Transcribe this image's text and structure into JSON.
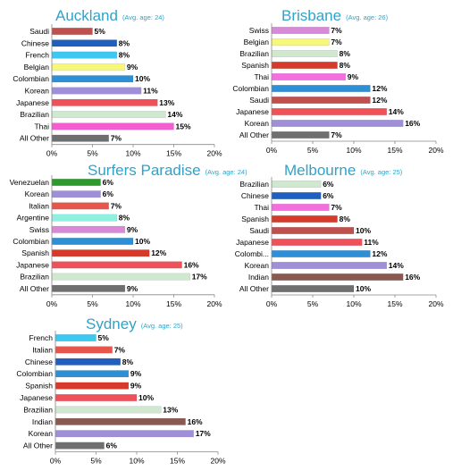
{
  "chart_data": [
    {
      "type": "bar",
      "orientation": "horizontal",
      "title": "Auckland",
      "subtitle": "(Avg. age: 24)",
      "categories": [
        "Saudi",
        "Chinese",
        "French",
        "Belgian",
        "Colombian",
        "Korean",
        "Japanese",
        "Brazilian",
        "Thai",
        "All Other"
      ],
      "values": [
        5,
        8,
        8,
        9,
        10,
        11,
        13,
        14,
        15,
        7
      ],
      "value_labels": [
        "5%",
        "8%",
        "8%",
        "9%",
        "10%",
        "11%",
        "13%",
        "14%",
        "15%",
        "7%"
      ],
      "colors": [
        "#c0504d",
        "#1f5fbf",
        "#3ec8f0",
        "#f7f77a",
        "#2f8fd6",
        "#9f8fd9",
        "#f0505a",
        "#cfe8cf",
        "#f45fd0",
        "#6f6f6f"
      ],
      "xlim": [
        0,
        20
      ],
      "xticks": [
        "0%",
        "5%",
        "10%",
        "15%",
        "20%"
      ]
    },
    {
      "type": "bar",
      "orientation": "horizontal",
      "title": "Brisbane",
      "subtitle": "(Avg. age: 26)",
      "categories": [
        "Swiss",
        "Belgian",
        "Brazilian",
        "Spanish",
        "Thai",
        "Colombian",
        "Saudi",
        "Japanese",
        "Korean",
        "All Other"
      ],
      "values": [
        7,
        7,
        8,
        8,
        9,
        12,
        12,
        14,
        16,
        7
      ],
      "value_labels": [
        "7%",
        "7%",
        "8%",
        "8%",
        "9%",
        "12%",
        "12%",
        "14%",
        "16%",
        "7%"
      ],
      "colors": [
        "#d88ad8",
        "#f7f77a",
        "#cfe8cf",
        "#d63a2a",
        "#f56ee0",
        "#2f8fd6",
        "#c0504d",
        "#f0505a",
        "#9f8fd9",
        "#6f6f6f"
      ],
      "xlim": [
        0,
        20
      ],
      "xticks": [
        "0%",
        "5%",
        "10%",
        "15%",
        "20%"
      ]
    },
    {
      "type": "bar",
      "orientation": "horizontal",
      "title": "Surfers Paradise",
      "subtitle": "(Avg. age: 24)",
      "categories": [
        "Venezuelan",
        "Korean",
        "Italian",
        "Argentine",
        "Swiss",
        "Colombian",
        "Spanish",
        "Japanese",
        "Brazilian",
        "All Other"
      ],
      "values": [
        6,
        6,
        7,
        8,
        9,
        10,
        12,
        16,
        17,
        9
      ],
      "value_labels": [
        "6%",
        "6%",
        "7%",
        "8%",
        "9%",
        "10%",
        "12%",
        "16%",
        "17%",
        "9%"
      ],
      "colors": [
        "#2e9a2e",
        "#9f8fd9",
        "#e8554a",
        "#8ff0e0",
        "#d88ad8",
        "#2f8fd6",
        "#d63a2a",
        "#f0505a",
        "#cfe8cf",
        "#6f6f6f"
      ],
      "xlim": [
        0,
        20
      ],
      "xticks": [
        "0%",
        "5%",
        "10%",
        "15%",
        "20%"
      ]
    },
    {
      "type": "bar",
      "orientation": "horizontal",
      "title": "Melbourne",
      "subtitle": "(Avg. age: 25)",
      "categories": [
        "Brazilian",
        "Chinese",
        "Thai",
        "Spanish",
        "Saudi",
        "Japanese",
        "Colombi...",
        "Korean",
        "Indian",
        "All Other"
      ],
      "values": [
        6,
        6,
        7,
        8,
        10,
        11,
        12,
        14,
        16,
        10
      ],
      "value_labels": [
        "6%",
        "6%",
        "7%",
        "8%",
        "10%",
        "11%",
        "12%",
        "14%",
        "16%",
        "10%"
      ],
      "colors": [
        "#cfe8cf",
        "#1f5fbf",
        "#f56ee0",
        "#d63a2a",
        "#c0504d",
        "#f0505a",
        "#2f8fd6",
        "#9f8fd9",
        "#8a5a52",
        "#6f6f6f"
      ],
      "xlim": [
        0,
        20
      ],
      "xticks": [
        "0%",
        "5%",
        "10%",
        "15%",
        "20%"
      ]
    },
    {
      "type": "bar",
      "orientation": "horizontal",
      "title": "Sydney",
      "subtitle": "(Avg. age: 25)",
      "categories": [
        "French",
        "Italian",
        "Chinese",
        "Colombian",
        "Spanish",
        "Japanese",
        "Brazilian",
        "Indian",
        "Korean",
        "All Other"
      ],
      "values": [
        5,
        7,
        8,
        9,
        9,
        10,
        13,
        16,
        17,
        6
      ],
      "value_labels": [
        "5%",
        "7%",
        "8%",
        "9%",
        "9%",
        "10%",
        "13%",
        "16%",
        "17%",
        "6%"
      ],
      "colors": [
        "#3ec8f0",
        "#e8554a",
        "#1f5fbf",
        "#2f8fd6",
        "#d63a2a",
        "#f0505a",
        "#cfe8cf",
        "#8a5a52",
        "#9f8fd9",
        "#6f6f6f"
      ],
      "xlim": [
        0,
        20
      ],
      "xticks": [
        "0%",
        "5%",
        "10%",
        "15%",
        "20%"
      ]
    }
  ]
}
